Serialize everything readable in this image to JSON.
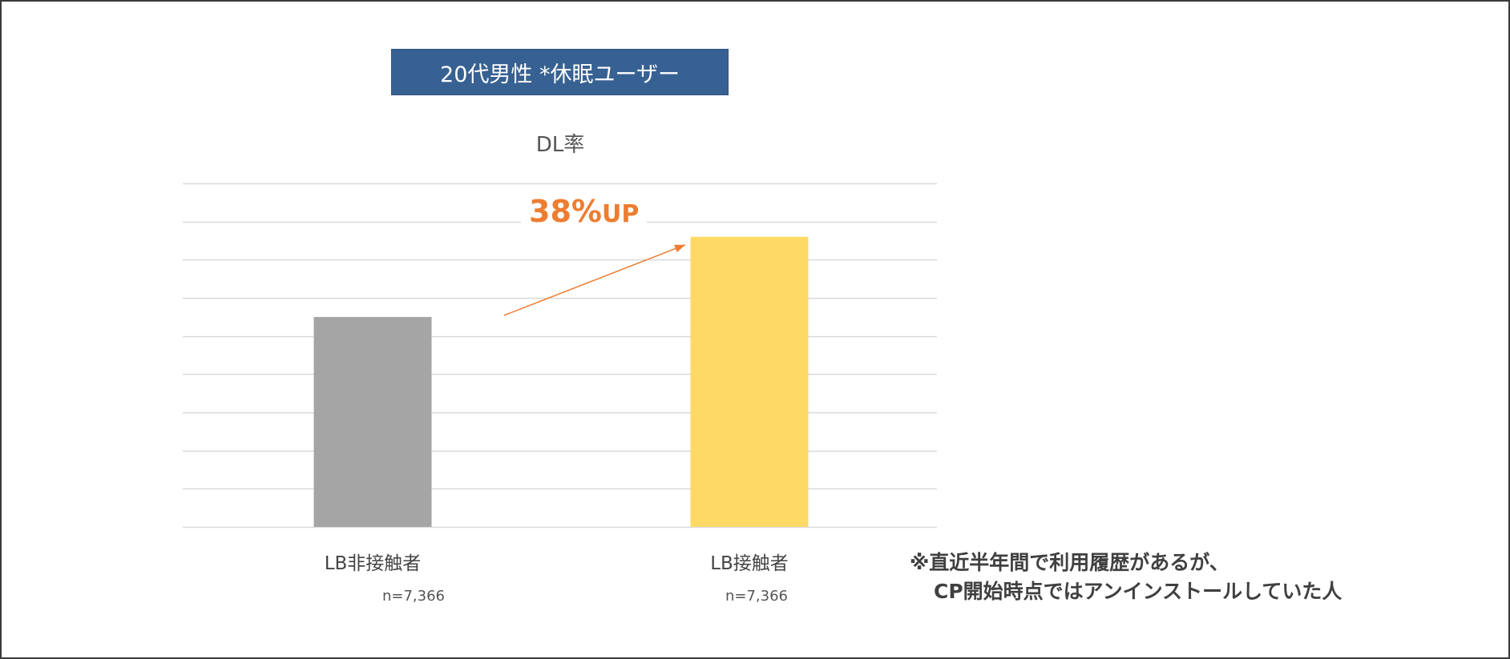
{
  "chart_data": {
    "type": "bar",
    "title": "20代男性 *休眠ユーザー",
    "subtitle": "DL率",
    "categories": [
      "LB非接触者",
      "LB接触者"
    ],
    "sample_sizes": [
      "n=7,366",
      "n=7,366"
    ],
    "values": [
      55,
      76
    ],
    "ylim": [
      0,
      90
    ],
    "y_tick_step": 10,
    "grid": true,
    "y_tick_labels_shown": false,
    "bar_colors": [
      "#A5A5A5",
      "#FFD966"
    ],
    "annotation": {
      "value": "38%",
      "suffix": "UP",
      "color": "#ED7D31",
      "arrow_from_category": 0,
      "arrow_to_category": 1
    }
  },
  "colors": {
    "title_bg": "#386193",
    "grid": "#D9D9D9",
    "frame": "#3a3a3a"
  },
  "note": {
    "line1": "※直近半年間で利用履歴があるが、",
    "line2": "CP開始時点ではアンインストールしていた人"
  }
}
